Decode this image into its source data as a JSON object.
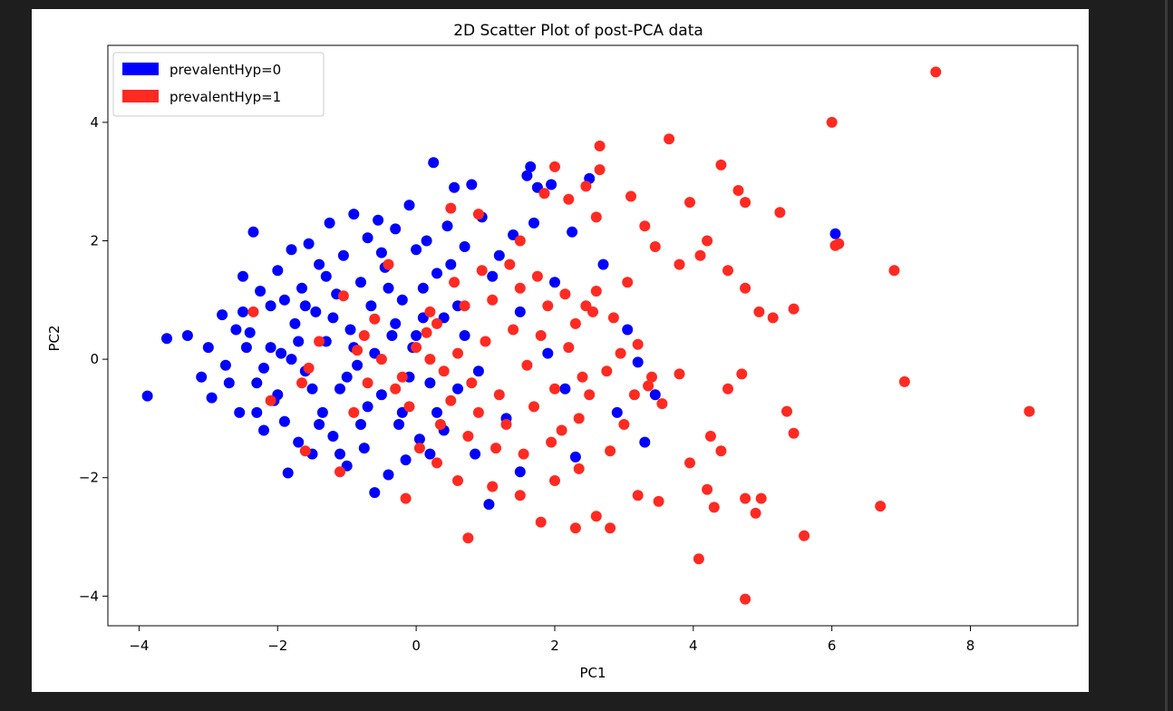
{
  "colors": {
    "page_bg": "#1e1e1e",
    "figure_bg": "#ffffff",
    "class0": "#0000ff",
    "class1": "#ff2a22"
  },
  "chart_data": {
    "type": "scatter",
    "title": "2D Scatter Plot of post-PCA data",
    "xlabel": "PC1",
    "ylabel": "PC2",
    "xlim": [
      -4.45,
      9.55
    ],
    "ylim": [
      -4.5,
      5.3
    ],
    "xticks": [
      -4,
      -2,
      0,
      2,
      4,
      6,
      8
    ],
    "yticks": [
      -4,
      -2,
      0,
      2,
      4
    ],
    "xtick_labels": [
      "−4",
      "−2",
      "0",
      "2",
      "4",
      "6",
      "8"
    ],
    "ytick_labels": [
      "−4",
      "−2",
      "0",
      "2",
      "4"
    ],
    "grid": false,
    "legend_position": "upper-left",
    "series": [
      {
        "name": "prevalentHyp=0",
        "color": "#0000ff",
        "points": [
          [
            -3.88,
            -0.62
          ],
          [
            -3.6,
            0.35
          ],
          [
            -3.3,
            0.4
          ],
          [
            -3.1,
            -0.3
          ],
          [
            -3.0,
            0.2
          ],
          [
            -2.95,
            -0.65
          ],
          [
            -2.8,
            0.75
          ],
          [
            -2.75,
            -0.1
          ],
          [
            -2.6,
            0.5
          ],
          [
            -2.55,
            -0.9
          ],
          [
            -2.5,
            1.4
          ],
          [
            -2.45,
            0.2
          ],
          [
            -2.35,
            2.15
          ],
          [
            -2.3,
            -0.4
          ],
          [
            -2.25,
            1.15
          ],
          [
            -2.2,
            -1.2
          ],
          [
            -2.1,
            0.9
          ],
          [
            -2.05,
            -0.7
          ],
          [
            -2.0,
            1.5
          ],
          [
            -1.95,
            0.1
          ],
          [
            -1.9,
            -1.05
          ],
          [
            -1.85,
            -1.92
          ],
          [
            -1.8,
            1.85
          ],
          [
            -1.75,
            0.6
          ],
          [
            -1.7,
            -1.4
          ],
          [
            -1.65,
            1.2
          ],
          [
            -1.6,
            -0.2
          ],
          [
            -1.55,
            1.95
          ],
          [
            -1.5,
            -1.6
          ],
          [
            -1.45,
            0.8
          ],
          [
            -1.4,
            1.6
          ],
          [
            -1.35,
            -0.9
          ],
          [
            -1.3,
            0.3
          ],
          [
            -1.25,
            2.3
          ],
          [
            -1.2,
            -1.3
          ],
          [
            -1.15,
            1.1
          ],
          [
            -1.1,
            -0.5
          ],
          [
            -1.05,
            1.75
          ],
          [
            -1.0,
            -1.8
          ],
          [
            -0.95,
            0.5
          ],
          [
            -0.9,
            2.45
          ],
          [
            -0.85,
            -0.1
          ],
          [
            -0.8,
            1.3
          ],
          [
            -0.75,
            -1.5
          ],
          [
            -0.7,
            2.05
          ],
          [
            -0.65,
            0.9
          ],
          [
            -0.6,
            -2.25
          ],
          [
            -0.55,
            2.35
          ],
          [
            -0.5,
            -0.6
          ],
          [
            -0.45,
            1.55
          ],
          [
            -0.4,
            -1.95
          ],
          [
            -0.35,
            0.4
          ],
          [
            -0.3,
            2.2
          ],
          [
            -0.25,
            -1.1
          ],
          [
            -0.2,
            1.0
          ],
          [
            -0.15,
            -1.7
          ],
          [
            -0.1,
            2.6
          ],
          [
            -0.05,
            0.2
          ],
          [
            0.0,
            1.85
          ],
          [
            0.05,
            -1.35
          ],
          [
            0.1,
            0.7
          ],
          [
            0.15,
            2.0
          ],
          [
            0.2,
            -0.4
          ],
          [
            0.25,
            3.32
          ],
          [
            0.3,
            1.45
          ],
          [
            0.4,
            -1.2
          ],
          [
            0.45,
            2.25
          ],
          [
            0.55,
            2.9
          ],
          [
            0.6,
            0.9
          ],
          [
            0.7,
            1.9
          ],
          [
            0.8,
            2.95
          ],
          [
            0.85,
            -1.6
          ],
          [
            0.95,
            2.4
          ],
          [
            1.05,
            -2.45
          ],
          [
            1.2,
            1.75
          ],
          [
            1.4,
            2.1
          ],
          [
            1.5,
            -1.9
          ],
          [
            1.6,
            3.1
          ],
          [
            1.65,
            3.25
          ],
          [
            1.75,
            2.9
          ],
          [
            1.95,
            2.95
          ],
          [
            2.0,
            1.3
          ],
          [
            2.15,
            -0.5
          ],
          [
            2.25,
            2.15
          ],
          [
            2.3,
            -1.65
          ],
          [
            2.5,
            3.05
          ],
          [
            2.7,
            1.6
          ],
          [
            2.9,
            -0.9
          ],
          [
            3.05,
            0.5
          ],
          [
            3.2,
            -0.05
          ],
          [
            3.3,
            -1.4
          ],
          [
            3.45,
            -0.6
          ],
          [
            6.05,
            2.12
          ],
          [
            -2.7,
            -0.4
          ],
          [
            -2.5,
            0.8
          ],
          [
            -2.3,
            -0.9
          ],
          [
            -2.1,
            0.2
          ],
          [
            -1.9,
            1.0
          ],
          [
            -1.7,
            0.3
          ],
          [
            -1.5,
            -0.5
          ],
          [
            -1.3,
            1.4
          ],
          [
            -1.1,
            -1.6
          ],
          [
            -0.9,
            0.2
          ],
          [
            -0.7,
            -0.8
          ],
          [
            -0.5,
            1.8
          ],
          [
            -0.3,
            0.6
          ],
          [
            -0.1,
            -0.3
          ],
          [
            0.1,
            1.2
          ],
          [
            0.3,
            -0.9
          ],
          [
            0.5,
            1.6
          ],
          [
            0.7,
            0.4
          ],
          [
            0.9,
            -0.2
          ],
          [
            1.1,
            1.4
          ],
          [
            1.3,
            -1.0
          ],
          [
            1.5,
            0.8
          ],
          [
            1.7,
            2.3
          ],
          [
            1.9,
            0.1
          ],
          [
            -2.4,
            0.45
          ],
          [
            -2.2,
            -0.15
          ],
          [
            -2.0,
            -0.6
          ],
          [
            -1.8,
            0.0
          ],
          [
            -1.6,
            0.9
          ],
          [
            -1.4,
            -1.1
          ],
          [
            -1.2,
            0.7
          ],
          [
            -1.0,
            -0.3
          ],
          [
            -0.8,
            -1.1
          ],
          [
            -0.6,
            0.1
          ],
          [
            -0.4,
            1.2
          ],
          [
            -0.2,
            -0.9
          ],
          [
            0.0,
            0.4
          ],
          [
            0.2,
            -1.6
          ],
          [
            0.4,
            0.7
          ],
          [
            0.6,
            -0.5
          ]
        ]
      },
      {
        "name": "prevalentHyp=1",
        "color": "#ff2a22",
        "points": [
          [
            7.5,
            4.85
          ],
          [
            6.0,
            4.0
          ],
          [
            6.1,
            1.95
          ],
          [
            6.05,
            1.92
          ],
          [
            6.9,
            1.5
          ],
          [
            7.05,
            -0.38
          ],
          [
            8.85,
            -0.88
          ],
          [
            6.7,
            -2.48
          ],
          [
            5.6,
            -2.98
          ],
          [
            4.75,
            -4.05
          ],
          [
            4.08,
            -3.37
          ],
          [
            4.9,
            -2.6
          ],
          [
            4.98,
            -2.35
          ],
          [
            4.75,
            -2.35
          ],
          [
            4.3,
            -2.5
          ],
          [
            4.2,
            -2.2
          ],
          [
            3.65,
            3.72
          ],
          [
            4.4,
            3.28
          ],
          [
            4.65,
            2.85
          ],
          [
            4.75,
            2.65
          ],
          [
            5.25,
            2.48
          ],
          [
            3.95,
            2.65
          ],
          [
            2.65,
            3.6
          ],
          [
            2.65,
            3.2
          ],
          [
            2.45,
            2.92
          ],
          [
            2.0,
            3.25
          ],
          [
            4.2,
            2.0
          ],
          [
            4.1,
            1.75
          ],
          [
            4.5,
            1.5
          ],
          [
            4.75,
            1.2
          ],
          [
            5.45,
            0.85
          ],
          [
            4.95,
            0.8
          ],
          [
            5.15,
            0.7
          ],
          [
            3.8,
            -0.25
          ],
          [
            4.5,
            -0.5
          ],
          [
            4.7,
            -0.25
          ],
          [
            5.35,
            -0.88
          ],
          [
            5.45,
            -1.25
          ],
          [
            4.4,
            -1.55
          ],
          [
            4.25,
            -1.3
          ],
          [
            3.95,
            -1.75
          ],
          [
            3.2,
            -2.3
          ],
          [
            3.5,
            -2.4
          ],
          [
            2.6,
            -2.65
          ],
          [
            2.8,
            -2.85
          ],
          [
            2.3,
            -2.85
          ],
          [
            1.8,
            -2.75
          ],
          [
            0.75,
            -3.02
          ],
          [
            -0.15,
            -2.35
          ],
          [
            -1.1,
            -1.9
          ],
          [
            -1.6,
            -1.55
          ],
          [
            -2.35,
            0.8
          ],
          [
            -2.1,
            -0.7
          ],
          [
            -1.65,
            -0.4
          ],
          [
            -1.55,
            -0.15
          ],
          [
            -1.4,
            0.3
          ],
          [
            -1.05,
            1.07
          ],
          [
            -0.85,
            0.15
          ],
          [
            -0.6,
            0.68
          ],
          [
            -0.4,
            1.6
          ],
          [
            -0.3,
            -0.5
          ],
          [
            0.2,
            0.8
          ],
          [
            0.5,
            2.55
          ],
          [
            0.9,
            2.45
          ],
          [
            1.5,
            2.0
          ],
          [
            1.85,
            2.8
          ],
          [
            2.2,
            2.7
          ],
          [
            2.6,
            2.4
          ],
          [
            3.1,
            2.75
          ],
          [
            3.3,
            2.25
          ],
          [
            3.45,
            1.9
          ],
          [
            3.8,
            1.6
          ],
          [
            3.05,
            1.3
          ],
          [
            2.6,
            1.15
          ],
          [
            2.45,
            0.9
          ],
          [
            2.85,
            0.7
          ],
          [
            3.2,
            0.25
          ],
          [
            3.35,
            -0.45
          ],
          [
            3.55,
            -0.75
          ],
          [
            3.0,
            -1.1
          ],
          [
            2.8,
            -1.55
          ],
          [
            2.35,
            -1.85
          ],
          [
            2.0,
            -2.05
          ],
          [
            1.5,
            -2.3
          ],
          [
            1.1,
            -2.15
          ],
          [
            0.6,
            -2.05
          ],
          [
            0.3,
            -1.75
          ],
          [
            0.05,
            -1.5
          ],
          [
            0.2,
            0.0
          ],
          [
            0.4,
            -0.2
          ],
          [
            0.6,
            0.1
          ],
          [
            0.8,
            -0.4
          ],
          [
            1.0,
            0.3
          ],
          [
            1.2,
            -0.6
          ],
          [
            1.4,
            0.5
          ],
          [
            1.6,
            -0.1
          ],
          [
            1.8,
            0.4
          ],
          [
            2.0,
            -0.5
          ],
          [
            2.2,
            0.2
          ],
          [
            2.4,
            -0.3
          ],
          [
            0.3,
            0.6
          ],
          [
            0.5,
            -0.7
          ],
          [
            0.7,
            0.9
          ],
          [
            0.9,
            -0.9
          ],
          [
            1.1,
            1.0
          ],
          [
            1.3,
            -1.1
          ],
          [
            1.5,
            1.2
          ],
          [
            1.7,
            -0.8
          ],
          [
            1.9,
            0.9
          ],
          [
            2.1,
            -1.2
          ],
          [
            2.3,
            0.6
          ],
          [
            2.5,
            -0.6
          ],
          [
            -0.2,
            -0.3
          ],
          [
            0.0,
            0.2
          ],
          [
            -0.1,
            -0.8
          ],
          [
            0.15,
            0.45
          ],
          [
            0.35,
            -1.1
          ],
          [
            0.55,
            1.3
          ],
          [
            0.75,
            -1.3
          ],
          [
            0.95,
            1.5
          ],
          [
            1.15,
            -1.5
          ],
          [
            1.35,
            1.6
          ],
          [
            1.55,
            -1.6
          ],
          [
            1.75,
            1.4
          ],
          [
            1.95,
            -1.4
          ],
          [
            2.15,
            1.1
          ],
          [
            2.35,
            -1.0
          ],
          [
            2.55,
            0.8
          ],
          [
            2.75,
            -0.2
          ],
          [
            2.95,
            0.1
          ],
          [
            3.15,
            -0.6
          ],
          [
            3.4,
            -0.3
          ],
          [
            -0.5,
            0.0
          ],
          [
            -0.7,
            -0.4
          ],
          [
            -0.9,
            -0.9
          ],
          [
            -0.75,
            0.4
          ]
        ]
      }
    ]
  }
}
